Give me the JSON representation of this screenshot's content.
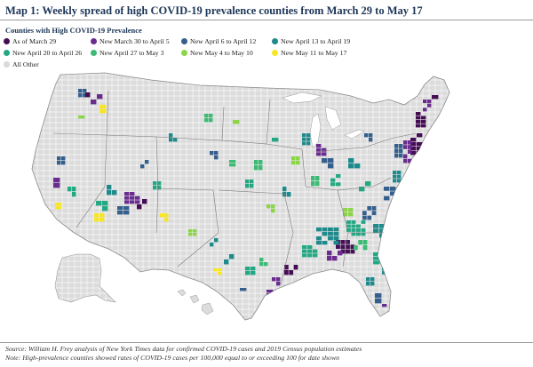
{
  "title": "Map 1: Weekly spread of high COVID-19 prevalence counties from March 29 to May 17",
  "legend": {
    "title": "Counties with High COVID-19 Prevalence",
    "items": [
      {
        "label": "As of March 29",
        "color": "#440d54"
      },
      {
        "label": "New March 30 to April 5",
        "color": "#6a2c8e"
      },
      {
        "label": "New April 6 to April 12",
        "color": "#355f8d"
      },
      {
        "label": "New April 13 to April 19",
        "color": "#1f8a8c"
      },
      {
        "label": "New April 20 to April 26",
        "color": "#23a884"
      },
      {
        "label": "New April 27 to May 3",
        "color": "#3cbb75"
      },
      {
        "label": "New May 4 to May 10",
        "color": "#8bd547"
      },
      {
        "label": "New May 11 to May 17",
        "color": "#f8e621"
      },
      {
        "label": "All Other",
        "color": "#d9d9d9"
      }
    ]
  },
  "footer": {
    "source": "Source: William H. Frey analysis of New York Times data for confirmed COVID-19 cases and 2019 Census population estimates",
    "note": "Note: High-prevalence counties showed rates of COVID-19 cases per 100,000 equal to or exceeding 100 for date shown"
  }
}
